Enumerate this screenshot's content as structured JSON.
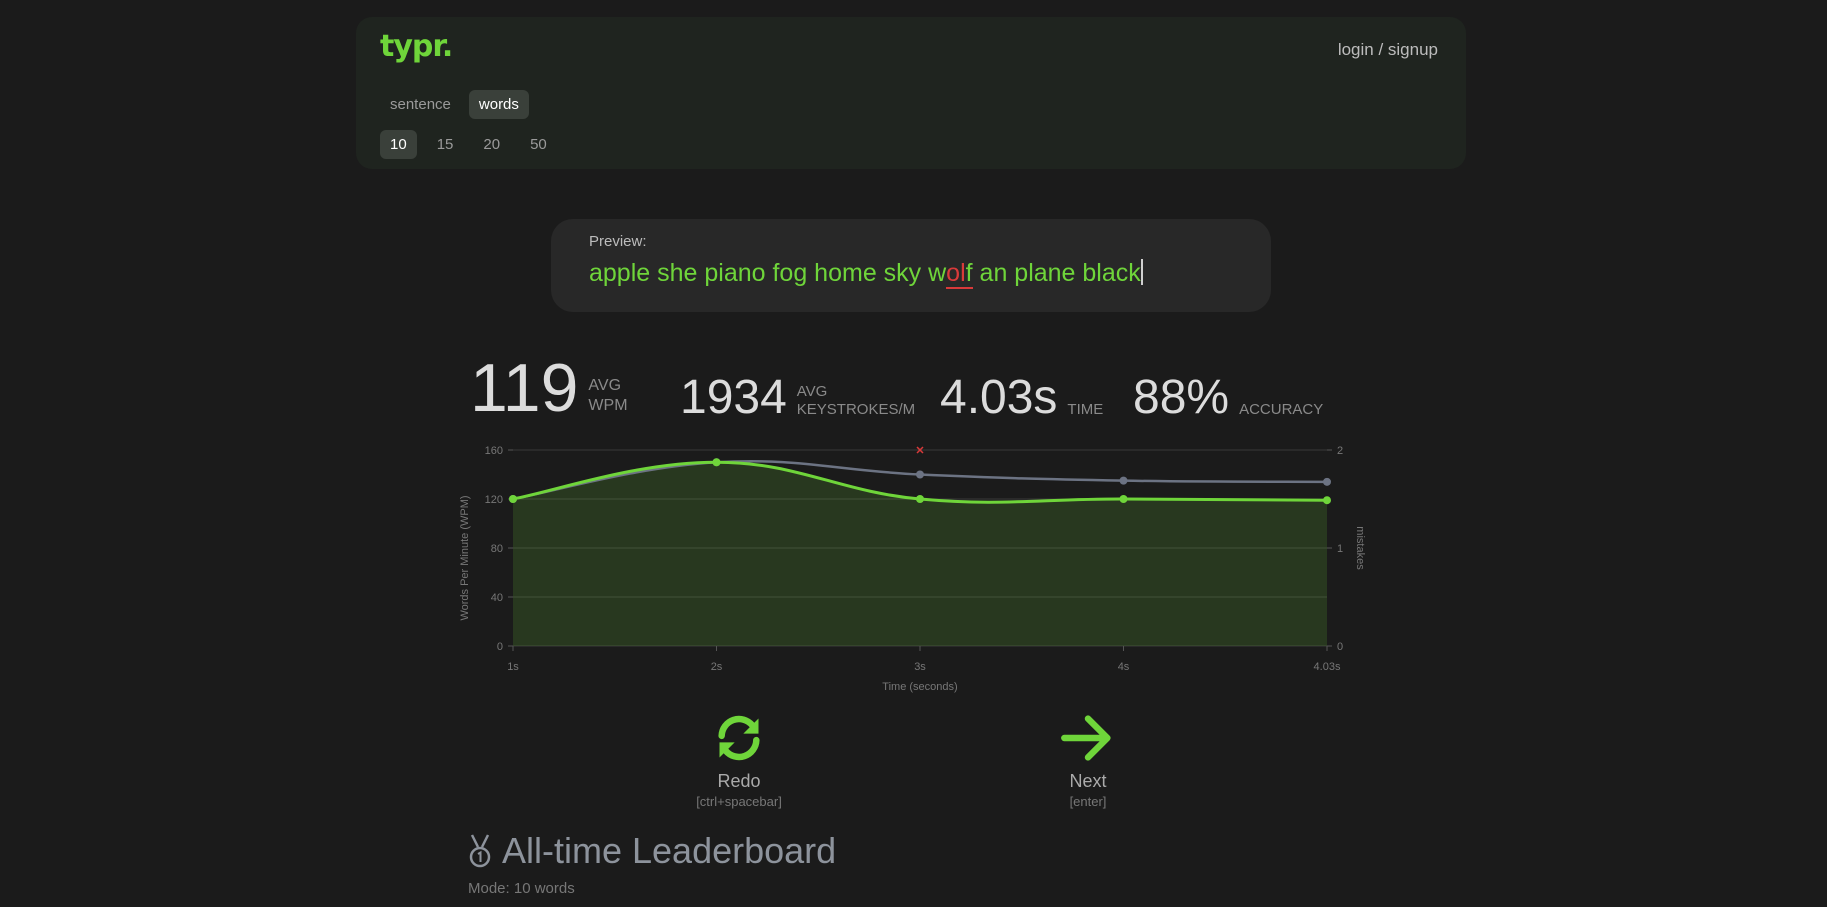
{
  "app": {
    "logo": "typr.",
    "login_label": "login / signup"
  },
  "modes": [
    {
      "label": "sentence",
      "active": false
    },
    {
      "label": "words",
      "active": true
    }
  ],
  "counts": [
    {
      "label": "10",
      "active": true
    },
    {
      "label": "15",
      "active": false
    },
    {
      "label": "20",
      "active": false
    },
    {
      "label": "50",
      "active": false
    }
  ],
  "preview": {
    "label": "Preview:",
    "before_error": "apple she piano fog home sky w",
    "error_chars": "ol",
    "error_tail": "f",
    "after_error": " an plane black"
  },
  "stats": {
    "wpm": {
      "value": "119",
      "label1": "AVG",
      "label2": "WPM"
    },
    "keystrokes": {
      "value": "1934",
      "label1": "AVG",
      "label2": "KEYSTROKES/M"
    },
    "time": {
      "value": "4.03s",
      "label": "TIME"
    },
    "accuracy": {
      "value": "88%",
      "label": "ACCURACY"
    }
  },
  "chart_data": {
    "type": "line",
    "xlabel": "Time (seconds)",
    "ylabel": "Words Per Minute (WPM)",
    "y2label": "mistakes",
    "x": [
      "1s",
      "2s",
      "3s",
      "4s",
      "4.03s"
    ],
    "ylim": [
      0,
      160
    ],
    "y2lim": [
      0,
      2
    ],
    "yticks": [
      "160",
      "120",
      "80",
      "40",
      "0"
    ],
    "y2ticks": [
      "2",
      "1",
      "0"
    ],
    "series": [
      {
        "values": [
          120,
          150,
          120,
          120,
          119
        ],
        "color": "#6fd53a",
        "fill": true
      },
      {
        "values": [
          120,
          150,
          140,
          135,
          134
        ],
        "color": "#6c7383",
        "fill": false
      }
    ],
    "mistakes": [
      {
        "x_index": 2,
        "value": 2
      }
    ]
  },
  "actions": {
    "redo": {
      "label": "Redo",
      "shortcut": "[ctrl+spacebar]",
      "icon": "refresh-icon"
    },
    "next": {
      "label": "Next",
      "shortcut": "[enter]",
      "icon": "arrow-right-icon"
    }
  },
  "leaderboard": {
    "title": "All-time Leaderboard",
    "mode": "Mode: 10 words",
    "icon": "medal-icon"
  },
  "colors": {
    "accent": "#6fd53a",
    "error": "#d93a3a",
    "background": "#1b1b1b"
  }
}
